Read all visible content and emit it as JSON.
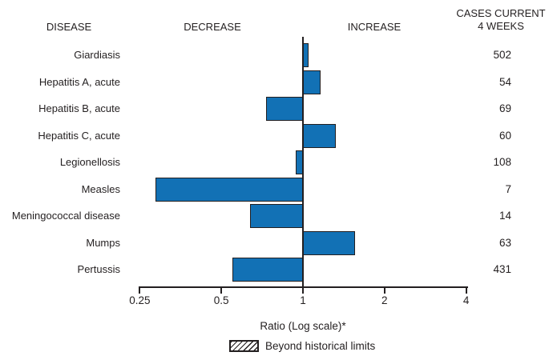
{
  "figure": {
    "headers": {
      "disease": "DISEASE",
      "decrease": "DECREASE",
      "increase": "INCREASE",
      "cases_line1": "CASES CURRENT",
      "cases_line2": "4 WEEKS"
    },
    "x_axis_label": "Ratio (Log scale)*",
    "legend_label": "Beyond historical limits"
  },
  "chart_data": {
    "type": "bar",
    "orientation": "horizontal",
    "x_scale": "log2",
    "xlabel": "Ratio (Log scale)*",
    "x_ticks": [
      0.25,
      0.5,
      1,
      2,
      4
    ],
    "xlim": [
      0.25,
      4
    ],
    "baseline_ratio": 1,
    "grid": false,
    "categories": [
      "Giardiasis",
      "Hepatitis A, acute",
      "Hepatitis B, acute",
      "Hepatitis C, acute",
      "Legionellosis",
      "Measles",
      "Meningococcal disease",
      "Mumps",
      "Pertussis"
    ],
    "series": [
      {
        "name": "Ratio",
        "values": [
          1.05,
          1.16,
          0.73,
          1.32,
          0.94,
          0.285,
          0.64,
          1.56,
          0.55
        ]
      }
    ],
    "cases_current_4_weeks": [
      502,
      54,
      69,
      60,
      108,
      7,
      14,
      63,
      431
    ],
    "beyond_historical_limits": [
      false,
      false,
      false,
      false,
      false,
      false,
      false,
      false,
      false
    ],
    "legend": {
      "label": "Beyond historical limits",
      "position": "bottom"
    },
    "colors": {
      "bar_fill": "#1271b5",
      "bar_border": "#231f20",
      "axis": "#231f20",
      "text": "#231f20"
    }
  }
}
